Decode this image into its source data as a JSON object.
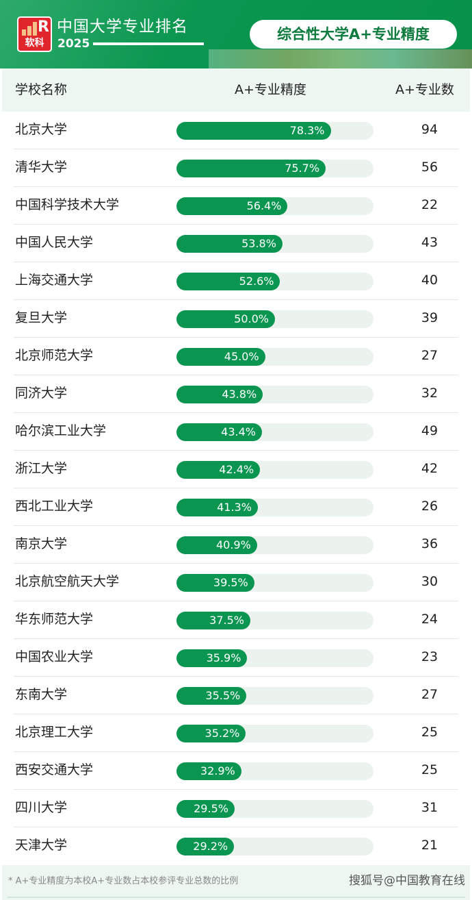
{
  "header": {
    "logo_text": "软科",
    "title": "中国大学专业排名",
    "year": "2025",
    "badge": "综合性大学A+专业精度"
  },
  "columns": {
    "name": "学校名称",
    "precision": "A+专业精度",
    "count": "A+专业数"
  },
  "rows": [
    {
      "name": "北京大学",
      "precision": 78.3,
      "precision_label": "78.3%",
      "count": "94"
    },
    {
      "name": "清华大学",
      "precision": 75.7,
      "precision_label": "75.7%",
      "count": "56"
    },
    {
      "name": "中国科学技术大学",
      "precision": 56.4,
      "precision_label": "56.4%",
      "count": "22"
    },
    {
      "name": "中国人民大学",
      "precision": 53.8,
      "precision_label": "53.8%",
      "count": "43"
    },
    {
      "name": "上海交通大学",
      "precision": 52.6,
      "precision_label": "52.6%",
      "count": "40"
    },
    {
      "name": "复旦大学",
      "precision": 50.0,
      "precision_label": "50.0%",
      "count": "39"
    },
    {
      "name": "北京师范大学",
      "precision": 45.0,
      "precision_label": "45.0%",
      "count": "27"
    },
    {
      "name": "同济大学",
      "precision": 43.8,
      "precision_label": "43.8%",
      "count": "32"
    },
    {
      "name": "哈尔滨工业大学",
      "precision": 43.4,
      "precision_label": "43.4%",
      "count": "49"
    },
    {
      "name": "浙江大学",
      "precision": 42.4,
      "precision_label": "42.4%",
      "count": "42"
    },
    {
      "name": "西北工业大学",
      "precision": 41.3,
      "precision_label": "41.3%",
      "count": "26"
    },
    {
      "name": "南京大学",
      "precision": 40.9,
      "precision_label": "40.9%",
      "count": "36"
    },
    {
      "name": "北京航空航天大学",
      "precision": 39.5,
      "precision_label": "39.5%",
      "count": "30"
    },
    {
      "name": "华东师范大学",
      "precision": 37.5,
      "precision_label": "37.5%",
      "count": "24"
    },
    {
      "name": "中国农业大学",
      "precision": 35.9,
      "precision_label": "35.9%",
      "count": "23"
    },
    {
      "name": "东南大学",
      "precision": 35.5,
      "precision_label": "35.5%",
      "count": "27"
    },
    {
      "name": "北京理工大学",
      "precision": 35.2,
      "precision_label": "35.2%",
      "count": "25"
    },
    {
      "name": "西安交通大学",
      "precision": 32.9,
      "precision_label": "32.9%",
      "count": "25"
    },
    {
      "name": "四川大学",
      "precision": 29.5,
      "precision_label": "29.5%",
      "count": "31"
    },
    {
      "name": "天津大学",
      "precision": 29.2,
      "precision_label": "29.2%",
      "count": "21"
    }
  ],
  "footer": {
    "note": "* A+专业精度为本校A+专业数占本校参评专业总数的比例",
    "watermark": "搜狐号@中国教育在线"
  },
  "colors": {
    "brand_green": "#0a9650",
    "logo_red": "#e0252c"
  }
}
